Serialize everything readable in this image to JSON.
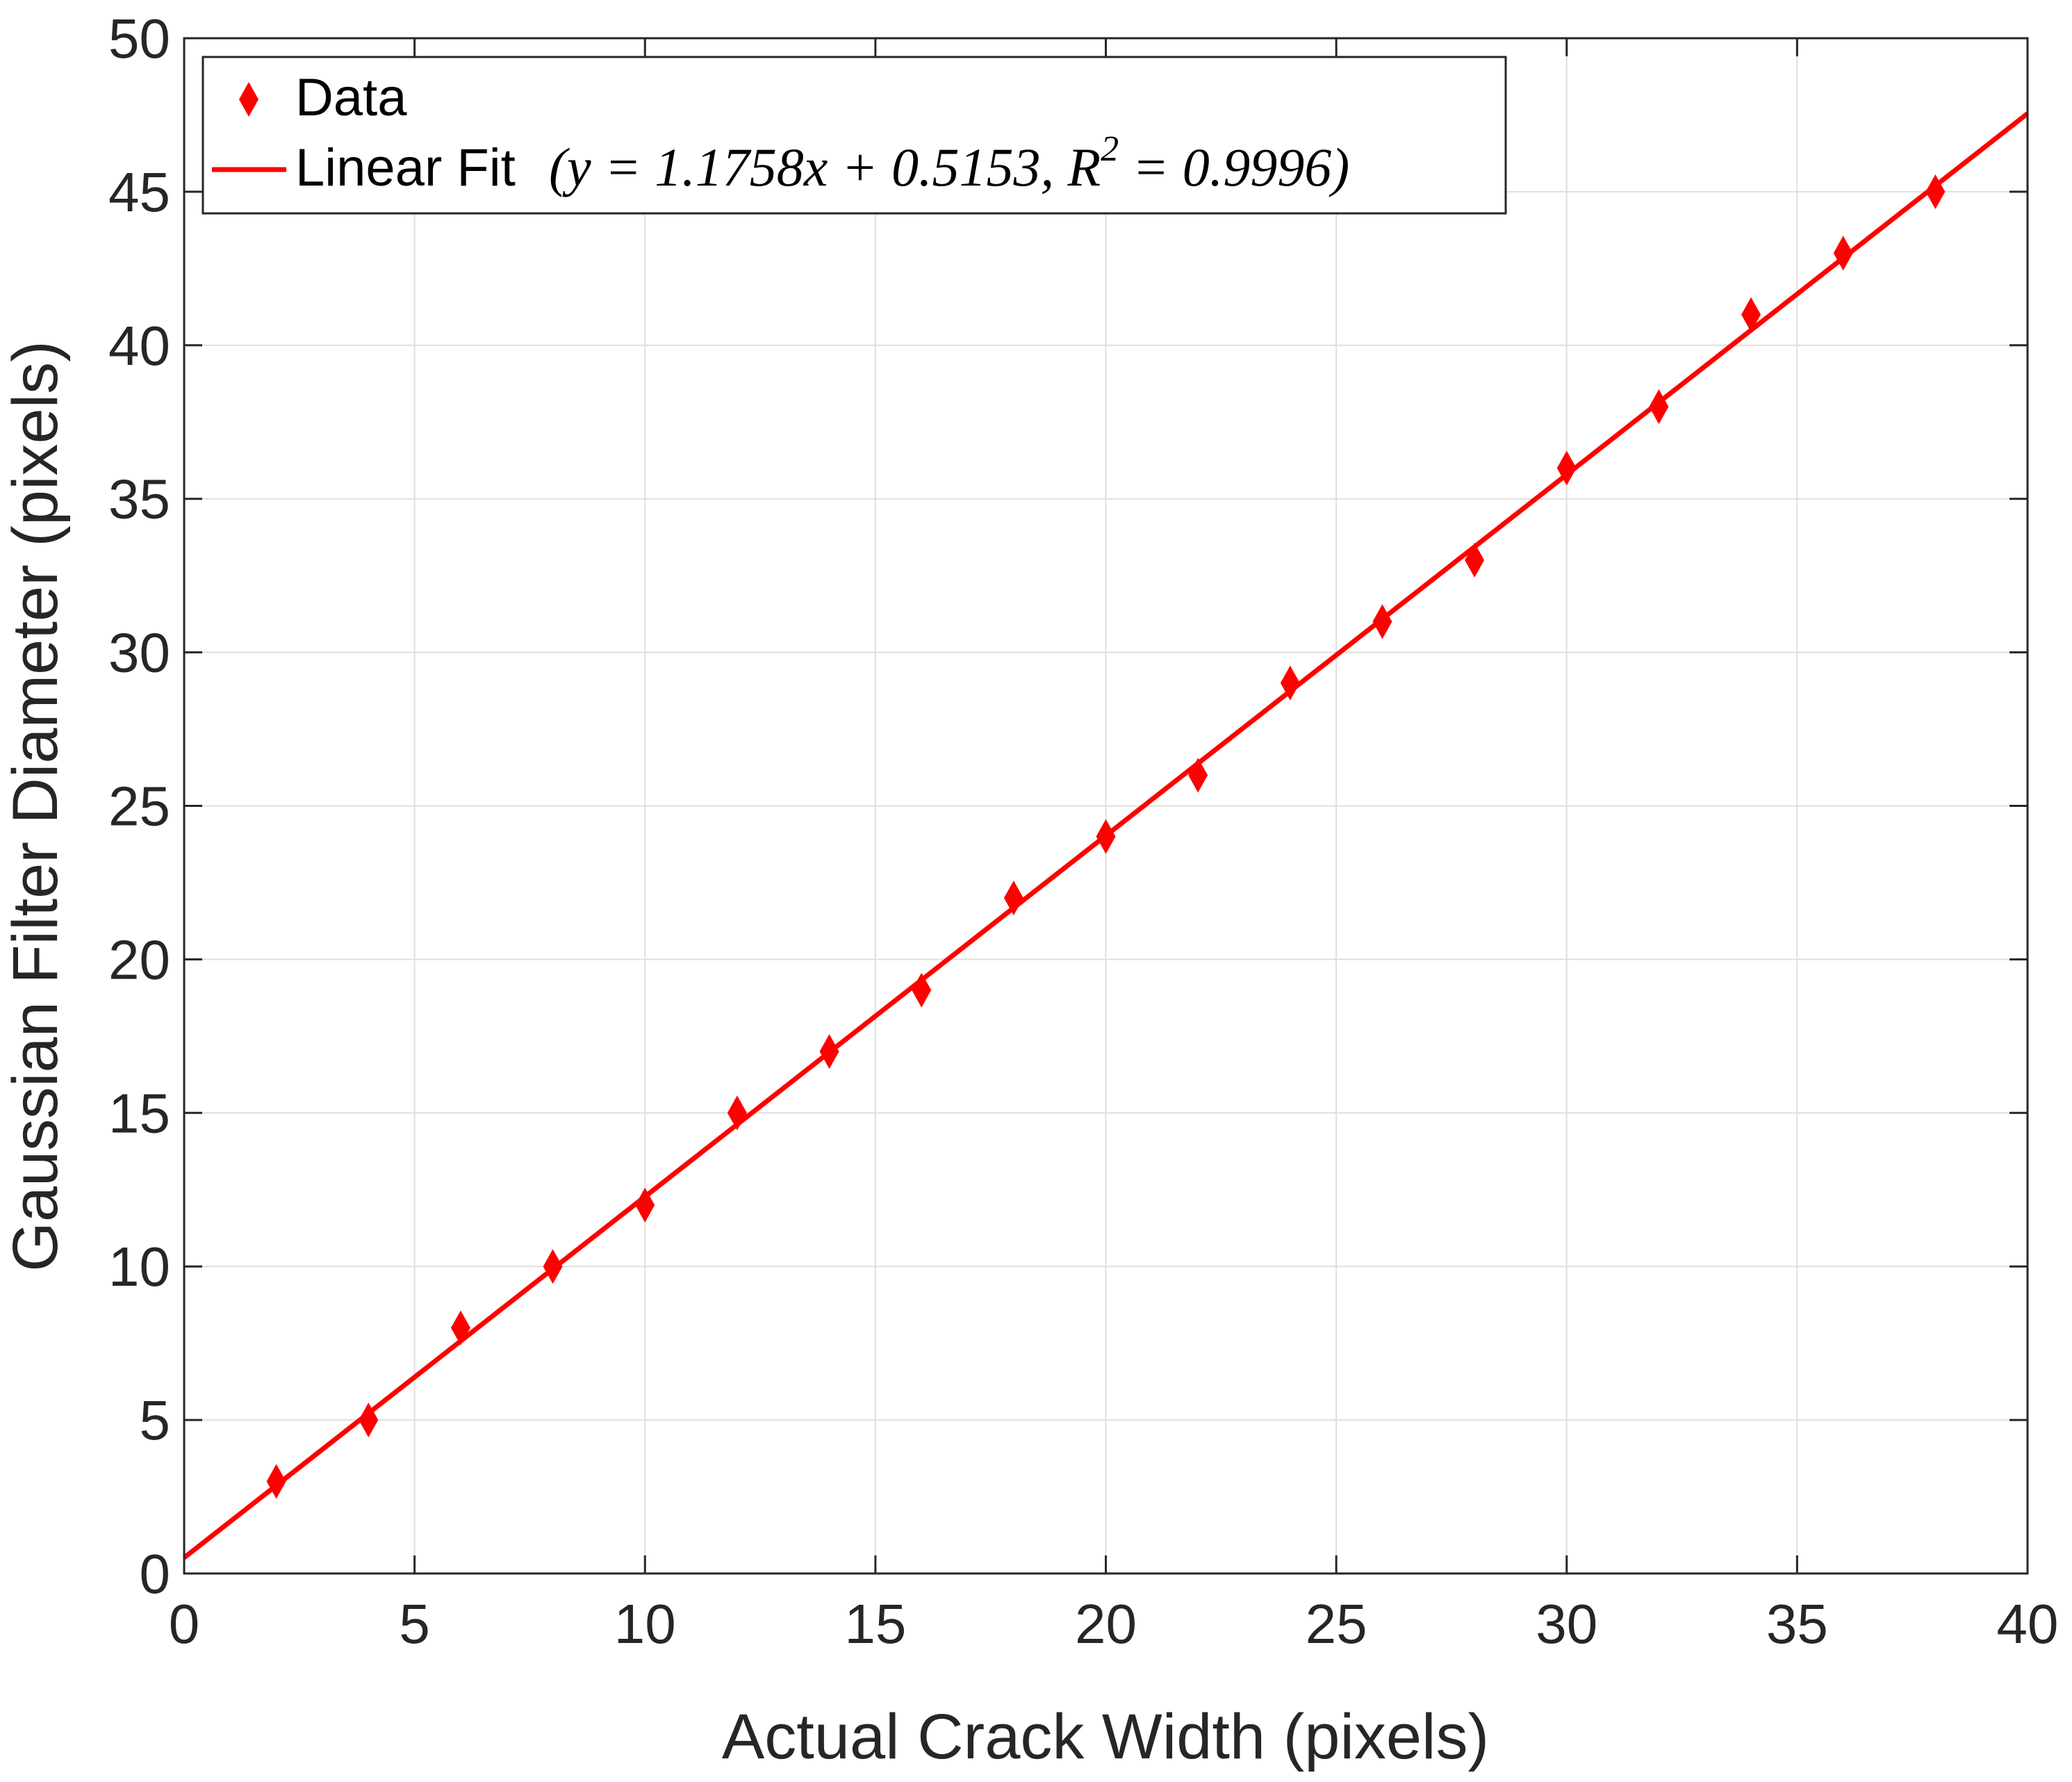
{
  "chart_data": {
    "type": "scatter",
    "xlabel": "Actual Crack Width (pixels)",
    "ylabel": "Gaussian Filter Diameter (pixels)",
    "xlim": [
      0,
      40
    ],
    "ylim": [
      0,
      50
    ],
    "xticks": [
      "0",
      "5",
      "10",
      "15",
      "20",
      "25",
      "30",
      "35",
      "40"
    ],
    "yticks": [
      "0",
      "5",
      "10",
      "15",
      "20",
      "25",
      "30",
      "35",
      "40",
      "45",
      "50"
    ],
    "grid": true,
    "legend_position": "top-left",
    "series": [
      {
        "name": "Data",
        "marker": "diamond",
        "color": "#ff0000",
        "x": [
          2,
          4,
          6,
          8,
          10,
          12,
          14,
          16,
          18,
          20,
          22,
          24,
          26,
          28,
          30,
          32,
          34,
          36,
          38
        ],
        "y": [
          3,
          5,
          8,
          10,
          12,
          15,
          17,
          19,
          22,
          24,
          26,
          29,
          31,
          33,
          36,
          38,
          41,
          43,
          45
        ]
      }
    ],
    "fit": {
      "name": "Linear Fit",
      "equation": "(y = 1.1758x + 0.5153, R",
      "r2_exponent": "2",
      "r2_value": " = 0.9996)",
      "slope": 1.1758,
      "intercept": 0.5153,
      "color": "#ff0000"
    }
  }
}
